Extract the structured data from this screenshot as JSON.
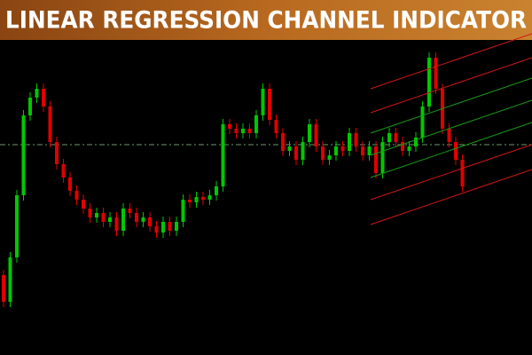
{
  "chart_data": {
    "type": "candlestick",
    "title": "LINEAR REGRESSION CHANNEL INDICATOR",
    "ylim": [
      0,
      355
    ],
    "up_color": "#00c800",
    "down_color": "#e00000",
    "open": [
      90,
      60,
      110,
      180,
      270,
      290,
      300,
      280,
      240,
      215,
      200,
      185,
      175,
      165,
      155,
      160,
      150,
      155,
      140,
      165,
      160,
      150,
      155,
      145,
      138,
      150,
      140,
      150,
      175,
      172,
      178,
      175,
      180,
      190,
      260,
      255,
      250,
      255,
      250,
      270,
      300,
      265,
      250,
      230,
      235,
      220,
      240,
      260,
      235,
      220,
      225,
      235,
      230,
      250,
      235,
      225,
      235,
      205,
      240,
      250,
      240,
      230,
      235,
      245,
      280,
      335,
      300,
      255,
      240,
      220
    ],
    "high": [
      96,
      116,
      186,
      276,
      296,
      306,
      306,
      286,
      246,
      221,
      206,
      191,
      181,
      171,
      166,
      166,
      161,
      161,
      171,
      171,
      166,
      161,
      161,
      151,
      156,
      156,
      156,
      181,
      181,
      184,
      184,
      186,
      196,
      266,
      266,
      261,
      261,
      261,
      276,
      306,
      306,
      271,
      256,
      241,
      241,
      246,
      266,
      266,
      241,
      231,
      241,
      241,
      256,
      256,
      241,
      241,
      241,
      246,
      256,
      256,
      246,
      241,
      251,
      286,
      341,
      341,
      306,
      261,
      246,
      226
    ],
    "low": [
      54,
      54,
      104,
      174,
      264,
      284,
      274,
      234,
      209,
      194,
      179,
      169,
      159,
      149,
      149,
      144,
      144,
      134,
      134,
      154,
      144,
      144,
      139,
      132,
      132,
      134,
      134,
      144,
      166,
      166,
      169,
      169,
      174,
      184,
      249,
      244,
      244,
      244,
      244,
      264,
      259,
      244,
      224,
      224,
      214,
      214,
      234,
      229,
      214,
      214,
      219,
      224,
      224,
      229,
      219,
      219,
      199,
      199,
      234,
      234,
      224,
      224,
      229,
      239,
      274,
      294,
      249,
      234,
      214,
      184
    ],
    "close": [
      60,
      110,
      180,
      270,
      290,
      300,
      280,
      240,
      215,
      200,
      185,
      175,
      165,
      155,
      160,
      150,
      155,
      140,
      165,
      160,
      150,
      155,
      145,
      138,
      150,
      140,
      150,
      175,
      172,
      178,
      175,
      180,
      190,
      260,
      255,
      250,
      255,
      250,
      270,
      300,
      265,
      250,
      230,
      235,
      220,
      240,
      260,
      235,
      220,
      225,
      235,
      230,
      250,
      235,
      225,
      235,
      205,
      240,
      250,
      240,
      230,
      235,
      245,
      280,
      335,
      300,
      255,
      240,
      220,
      190
    ],
    "level": {
      "value": 237,
      "color": "#6a9a6a"
    },
    "channel": [
      {
        "color": "#d01818",
        "start": 300,
        "end": 362
      },
      {
        "color": "#d01818",
        "start": 273,
        "end": 335
      },
      {
        "color": "#1a9a1a",
        "start": 250,
        "end": 312
      },
      {
        "color": "#1a9a1a",
        "start": 225,
        "end": 287
      },
      {
        "color": "#1a9a1a",
        "start": 200,
        "end": 262
      },
      {
        "color": "#d01818",
        "start": 175,
        "end": 237
      },
      {
        "color": "#d01818",
        "start": 147,
        "end": 209
      }
    ]
  }
}
